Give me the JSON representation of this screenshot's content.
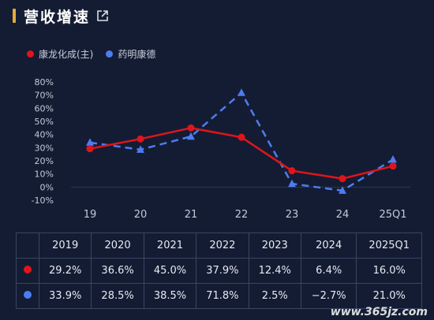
{
  "header": {
    "title": "营收增速"
  },
  "legend": [
    {
      "name": "康龙化成(主)",
      "color": "#e0151b"
    },
    {
      "name": "药明康德",
      "color": "#4d7cf2"
    }
  ],
  "chart_data": {
    "type": "line",
    "categories": [
      "19",
      "20",
      "21",
      "22",
      "23",
      "24",
      "25Q1"
    ],
    "y_ticks": [
      "80%",
      "70%",
      "60%",
      "50%",
      "40%",
      "30%",
      "20%",
      "10%",
      "0%",
      "-10%"
    ],
    "ylim": [
      -10,
      80
    ],
    "grid": false,
    "series": [
      {
        "name": "康龙化成(主)",
        "values": [
          29.2,
          36.6,
          45.0,
          37.9,
          12.4,
          6.4,
          16.0
        ],
        "color": "#e0151b",
        "style": "solid",
        "marker": "circle"
      },
      {
        "name": "药明康德",
        "values": [
          33.9,
          28.5,
          38.5,
          71.8,
          2.5,
          -2.7,
          21.0
        ],
        "color": "#4d7cf2",
        "style": "dashed",
        "marker": "triangle"
      }
    ]
  },
  "table": {
    "headers": [
      "2019",
      "2020",
      "2021",
      "2022",
      "2023",
      "2024",
      "2025Q1"
    ],
    "rows": [
      {
        "color": "#e0151b",
        "values": [
          "29.2%",
          "36.6%",
          "45.0%",
          "37.9%",
          "12.4%",
          "6.4%",
          "16.0%"
        ]
      },
      {
        "color": "#4d7cf2",
        "values": [
          "33.9%",
          "28.5%",
          "38.5%",
          "71.8%",
          "2.5%",
          "−2.7%",
          "21.0%"
        ]
      }
    ]
  },
  "watermark": "www.365jz.com"
}
